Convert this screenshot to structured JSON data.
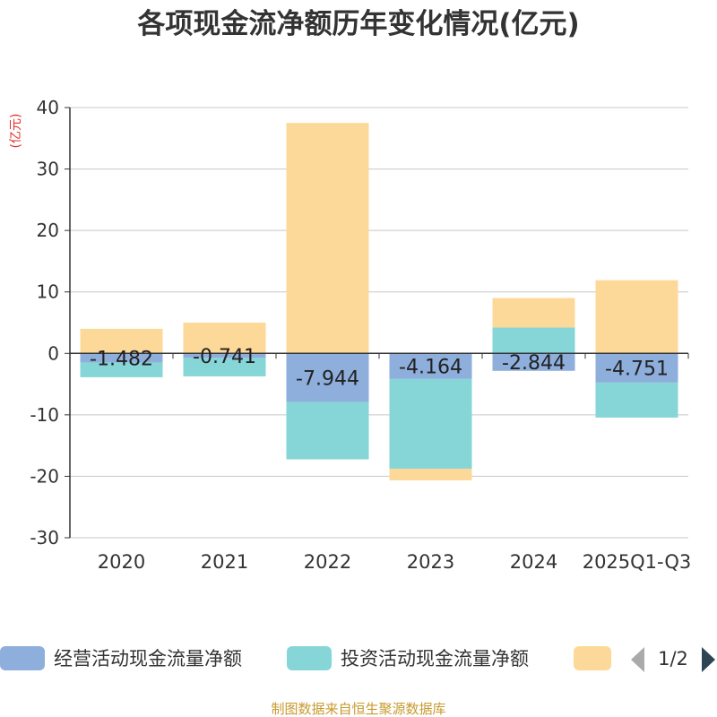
{
  "chart_data": {
    "type": "bar",
    "stacked": true,
    "title": "各项现金流净额历年变化情况(亿元)",
    "ylabel": "(亿元)",
    "xlabel": "",
    "ylim": [
      -30,
      40
    ],
    "yticks": [
      40,
      30,
      20,
      10,
      0,
      -10,
      -20,
      -30
    ],
    "categories": [
      "2020",
      "2021",
      "2022",
      "2023",
      "2024",
      "2025Q1-Q3"
    ],
    "series": [
      {
        "name": "经营活动现金流量净额",
        "color": "#8eaedc",
        "values": [
          -1.482,
          -0.741,
          -7.944,
          -4.164,
          -2.844,
          -4.751
        ],
        "labels": [
          "-1.482",
          "-0.741",
          "-7.944",
          "-4.164",
          "-2.844",
          "-4.751"
        ]
      },
      {
        "name": "投资活动现金流量净额",
        "color": "#86d6d8",
        "values": [
          -2.4,
          -3.0,
          -9.3,
          -14.6,
          4.2,
          -5.7
        ]
      },
      {
        "name": "",
        "color": "#fdd999",
        "values": [
          4.0,
          5.0,
          37.5,
          -1.9,
          4.8,
          11.9
        ]
      }
    ],
    "legend": {
      "placement": "bottom",
      "page": "1/2"
    },
    "grid": true
  },
  "footer": {
    "source": "制图数据来自恒生聚源数据库"
  }
}
